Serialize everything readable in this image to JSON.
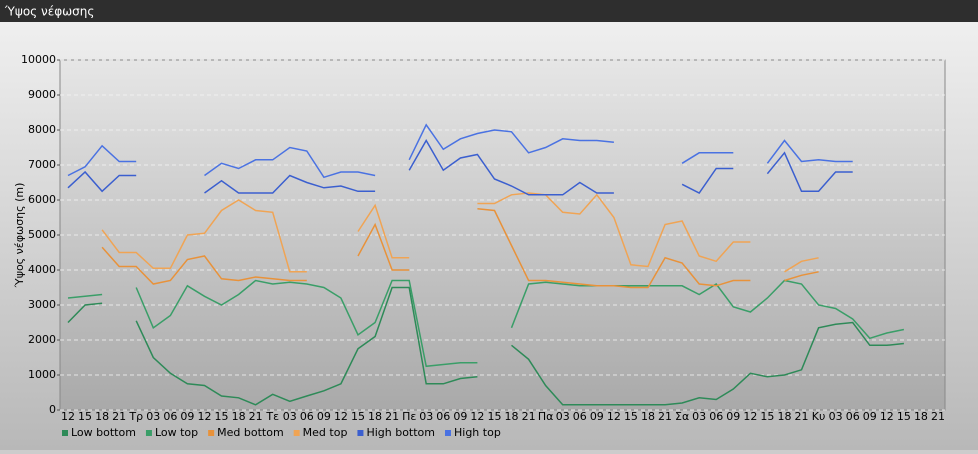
{
  "window_title": "Ύψος νέφωσης",
  "chart_data": {
    "type": "line",
    "ylabel": "Ύψος νέφωσης (m)",
    "ylim": [
      0,
      10000
    ],
    "yticks": [
      0,
      1000,
      2000,
      3000,
      4000,
      5000,
      6000,
      7000,
      8000,
      9000,
      10000
    ],
    "grid": true,
    "legend": "bottom",
    "categories": [
      "12",
      "15",
      "18",
      "21",
      "Τρ",
      "03",
      "06",
      "09",
      "12",
      "15",
      "18",
      "21",
      "Τε",
      "03",
      "06",
      "09",
      "12",
      "15",
      "18",
      "21",
      "Πε",
      "03",
      "06",
      "09",
      "12",
      "15",
      "18",
      "21",
      "Πα",
      "03",
      "06",
      "09",
      "12",
      "15",
      "18",
      "21",
      "Σα",
      "03",
      "06",
      "09",
      "12",
      "15",
      "18",
      "21",
      "Κυ",
      "03",
      "06",
      "09",
      "12",
      "15",
      "18",
      "21"
    ],
    "series": [
      {
        "name": "Low bottom",
        "color": "#2e8a58",
        "values": [
          2500,
          3000,
          3050,
          null,
          2550,
          1500,
          1050,
          750,
          700,
          400,
          350,
          150,
          450,
          250,
          400,
          550,
          750,
          1750,
          2100,
          3500,
          3500,
          750,
          750,
          900,
          950,
          null,
          1850,
          1450,
          700,
          150,
          150,
          150,
          150,
          150,
          150,
          150,
          200,
          350,
          300,
          600,
          1050,
          950,
          1000,
          1150,
          2350,
          2450,
          2500,
          1850,
          1850,
          1900,
          null,
          null
        ]
      },
      {
        "name": "Low top",
        "color": "#3a9e68",
        "values": [
          3200,
          3250,
          3300,
          null,
          3500,
          2350,
          2700,
          3550,
          3250,
          3000,
          3300,
          3700,
          3600,
          3650,
          3600,
          3500,
          3200,
          2150,
          2500,
          3700,
          3700,
          1250,
          1300,
          1350,
          1350,
          null,
          2350,
          3600,
          3650,
          3600,
          3550,
          3550,
          3550,
          3550,
          3550,
          3550,
          3550,
          3300,
          3600,
          2950,
          2800,
          3200,
          3700,
          3600,
          3000,
          2900,
          2600,
          2050,
          2200,
          2300,
          null,
          null
        ]
      },
      {
        "name": "Med bottom",
        "color": "#e8923a",
        "values": [
          null,
          null,
          4650,
          4100,
          4100,
          3600,
          3700,
          4300,
          4400,
          3750,
          3700,
          3800,
          3750,
          3700,
          3700,
          null,
          null,
          4400,
          5300,
          4000,
          4000,
          null,
          null,
          null,
          5750,
          5700,
          4700,
          3700,
          3700,
          3650,
          3600,
          3550,
          3550,
          3500,
          3500,
          4350,
          4200,
          3600,
          3550,
          3700,
          3700,
          null,
          3700,
          3850,
          3950,
          null,
          null,
          null,
          null,
          null,
          null,
          null
        ]
      },
      {
        "name": "Med top",
        "color": "#f0a454",
        "values": [
          null,
          null,
          5150,
          4500,
          4500,
          4050,
          4050,
          5000,
          5050,
          5700,
          6000,
          5700,
          5650,
          3950,
          3950,
          null,
          null,
          5100,
          5850,
          4350,
          4350,
          null,
          null,
          null,
          5900,
          5900,
          6150,
          6200,
          6150,
          5650,
          5600,
          6150,
          5500,
          4150,
          4100,
          5300,
          5400,
          4400,
          4250,
          4800,
          4800,
          null,
          3950,
          4250,
          4350,
          null,
          null,
          null,
          null,
          null,
          null,
          null
        ]
      },
      {
        "name": "High bottom",
        "color": "#3b5fcf",
        "values": [
          6350,
          6800,
          6250,
          6700,
          6700,
          null,
          null,
          null,
          6200,
          6550,
          6200,
          6200,
          6200,
          6700,
          6500,
          6350,
          6400,
          6250,
          6250,
          null,
          6850,
          7700,
          6850,
          7200,
          7300,
          6600,
          6400,
          6150,
          6150,
          6150,
          6500,
          6200,
          6200,
          null,
          null,
          null,
          6450,
          6200,
          6900,
          6900,
          null,
          6750,
          7350,
          6250,
          6250,
          6800,
          6800,
          null,
          null,
          null,
          null,
          null
        ]
      },
      {
        "name": "High top",
        "color": "#4a72e2",
        "values": [
          6700,
          6950,
          7550,
          7100,
          7100,
          null,
          null,
          null,
          6700,
          7050,
          6900,
          7150,
          7150,
          7500,
          7400,
          6650,
          6800,
          6800,
          6700,
          null,
          7150,
          8150,
          7450,
          7750,
          7900,
          8000,
          7950,
          7350,
          7500,
          7750,
          7700,
          7700,
          7650,
          null,
          null,
          null,
          7050,
          7350,
          7350,
          7350,
          null,
          7050,
          7700,
          7100,
          7150,
          7100,
          7100,
          null,
          null,
          null,
          null,
          null
        ]
      }
    ]
  }
}
